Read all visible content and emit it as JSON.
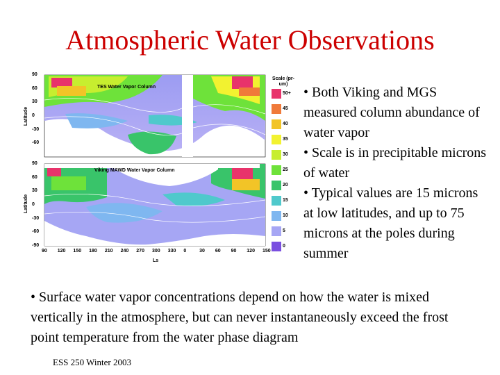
{
  "slide": {
    "title": "Atmospheric Water Observations",
    "footer": "ESS 250 Winter 2003"
  },
  "bullets": [
    "• Both Viking and MGS measured column abundance of water vapor",
    "• Scale is in precipitable microns of water",
    "• Typical values are 15 microns at low latitudes, and up to 75 microns at the poles during summer"
  ],
  "bottom_bullet": "• Surface water vapor concentrations depend on how the water is mixed vertically in the atmosphere, but can never instantaneously exceed the frost point temperature from the water phase diagram",
  "figure": {
    "top_panel_title": "TES Water Vapor Column",
    "bottom_panel_title": "Viking MAWD Water Vapor Column",
    "y_axis_label": "Latitude",
    "x_axis_label": "Ls",
    "lat_ticks": [
      "90",
      "60",
      "30",
      "0",
      "-30",
      "-60",
      "-90"
    ],
    "ls_ticks": [
      "90",
      "120",
      "150",
      "180",
      "210",
      "240",
      "270",
      "300",
      "330",
      "0",
      "30",
      "60",
      "90",
      "120",
      "150"
    ],
    "scale_title": "Scale (pr-um)",
    "scale": [
      {
        "label": "50+",
        "color": "#e8336b"
      },
      {
        "label": "45",
        "color": "#f07a3a"
      },
      {
        "label": "40",
        "color": "#f2c427"
      },
      {
        "label": "35",
        "color": "#f2f230"
      },
      {
        "label": "30",
        "color": "#c7ee2f"
      },
      {
        "label": "25",
        "color": "#6ee23a"
      },
      {
        "label": "20",
        "color": "#39c46a"
      },
      {
        "label": "15",
        "color": "#4fc9cc"
      },
      {
        "label": "10",
        "color": "#7fb7f0"
      },
      {
        "label": "5",
        "color": "#a6a6f4"
      },
      {
        "label": "0",
        "color": "#7a4fe0"
      }
    ]
  }
}
